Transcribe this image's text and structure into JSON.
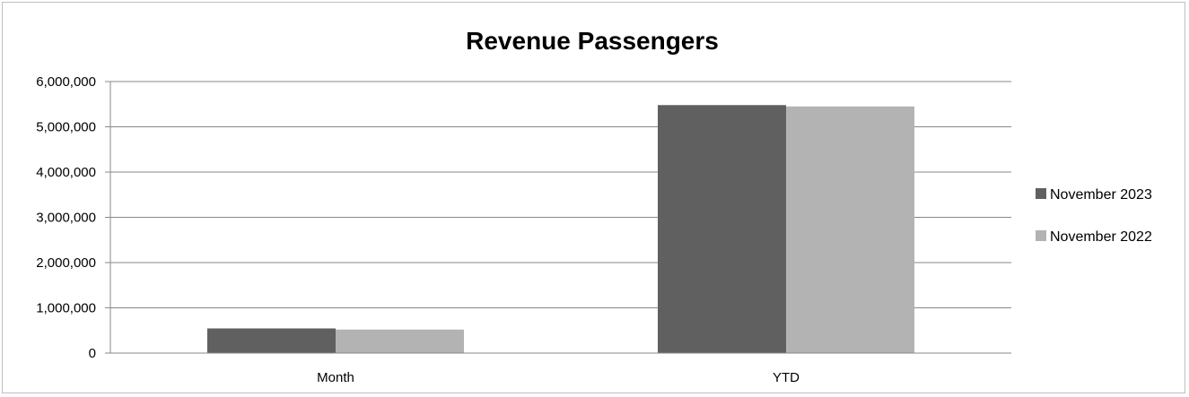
{
  "chart_data": {
    "type": "bar",
    "title": "Revenue Passengers",
    "xlabel": "",
    "ylabel": "",
    "categories": [
      "Month",
      "YTD"
    ],
    "series": [
      {
        "name": "November 2023",
        "color": "#606060",
        "values": [
          545000,
          5480000
        ]
      },
      {
        "name": "November 2022",
        "color": "#b3b3b3",
        "values": [
          520000,
          5450000
        ]
      }
    ],
    "ylim": [
      0,
      6000000
    ],
    "yticks": [
      0,
      1000000,
      2000000,
      3000000,
      4000000,
      5000000,
      6000000
    ],
    "ytick_labels": [
      "0",
      "1,000,000",
      "2,000,000",
      "3,000,000",
      "4,000,000",
      "5,000,000",
      "6,000,000"
    ],
    "grid": true,
    "legend_position": "right",
    "gridline_color": "#888888"
  }
}
